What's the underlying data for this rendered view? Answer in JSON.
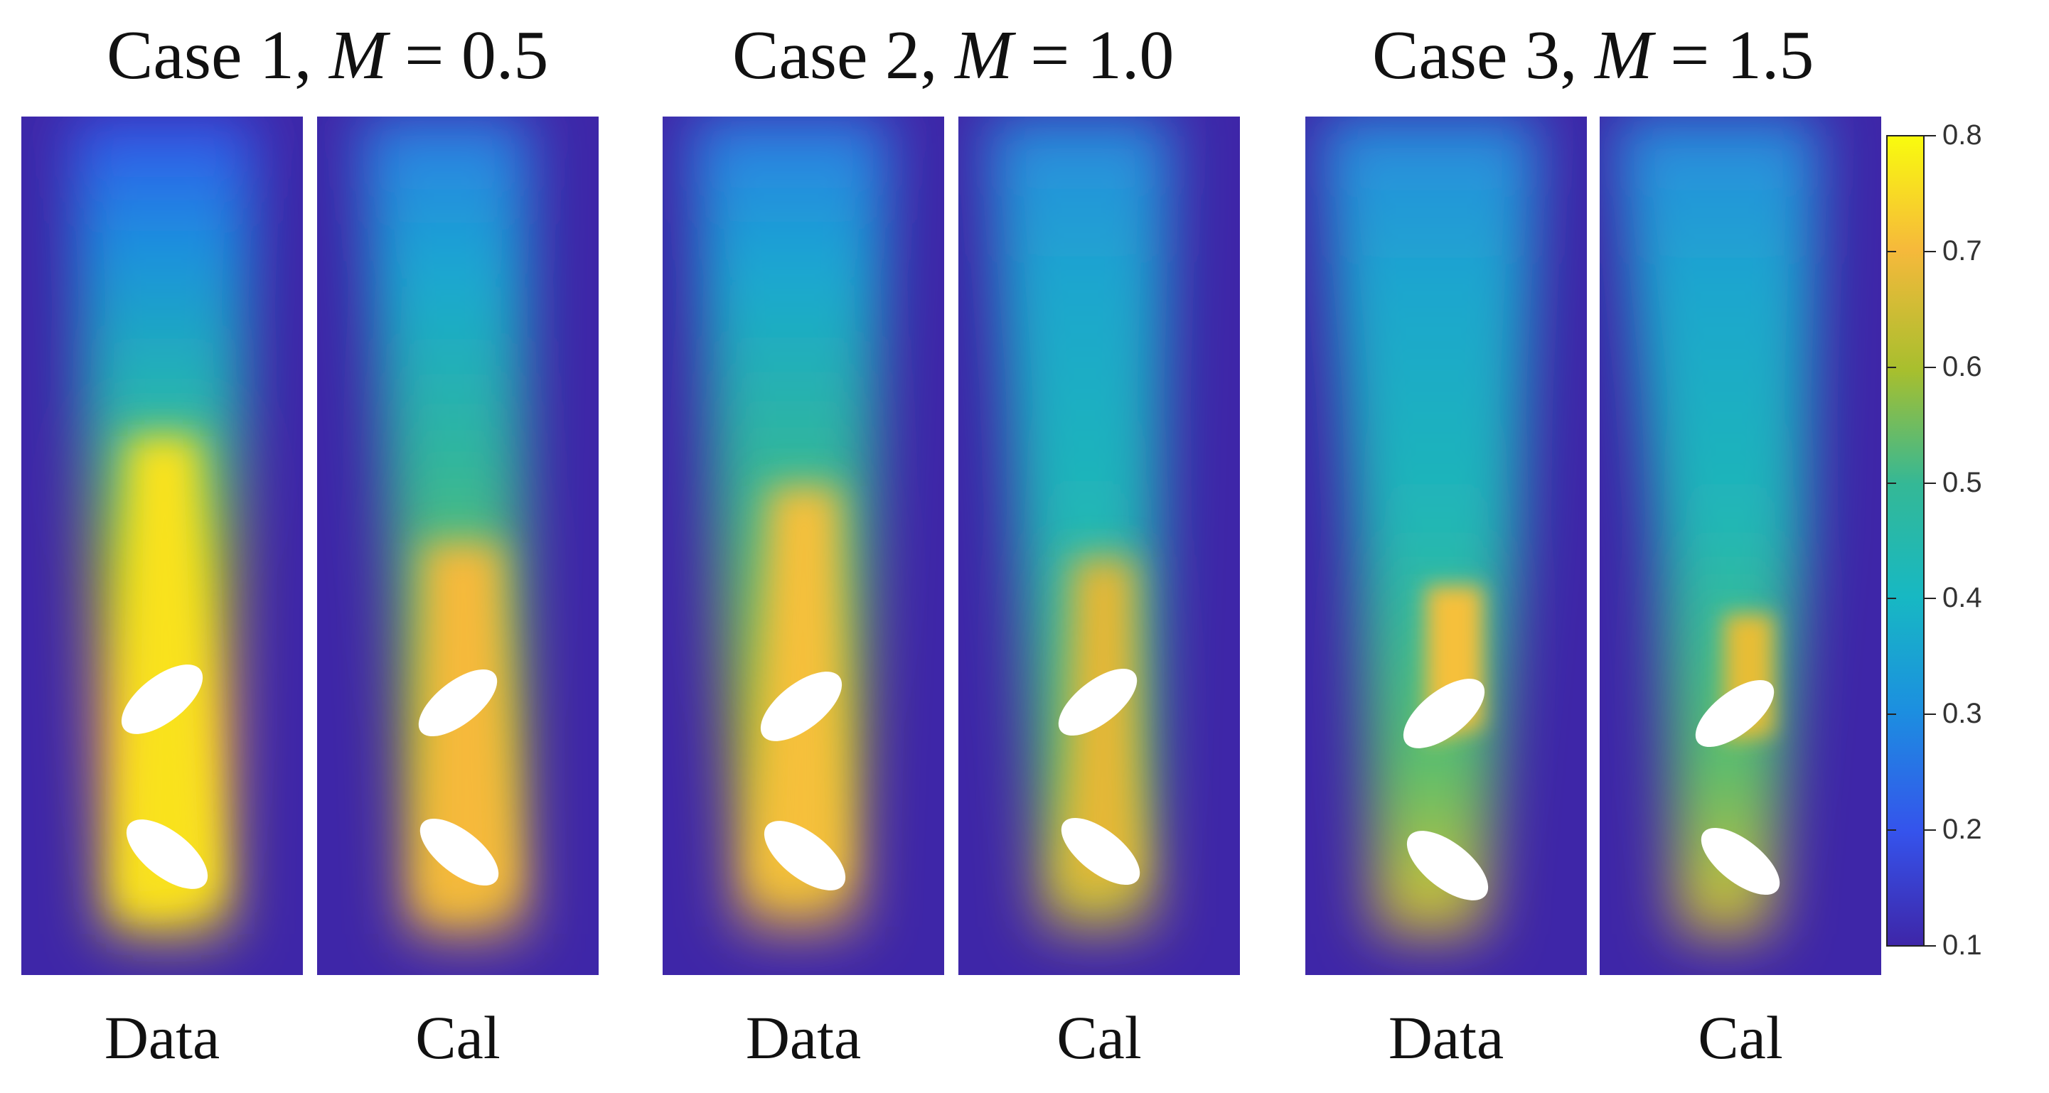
{
  "cases": [
    {
      "case": "Case 1, ",
      "var": "M",
      "rest": " = 0.5"
    },
    {
      "case": "Case 2, ",
      "var": "M",
      "rest": " = 1.0"
    },
    {
      "case": "Case 3, ",
      "var": "M",
      "rest": " = 1.5"
    }
  ],
  "panel_labels": [
    "Data",
    "Cal",
    "Data",
    "Cal",
    "Data",
    "Cal"
  ],
  "colorbar": {
    "ticks": [
      "0.8",
      "0.7",
      "0.6",
      "0.5",
      "0.4",
      "0.3",
      "0.2",
      "0.1"
    ],
    "colors": [
      "#f9fb0e",
      "#f6b93b",
      "#a7bf2e",
      "#34b896",
      "#17b8c3",
      "#1c8fe0",
      "#3553ec",
      "#3e26a8"
    ]
  },
  "background_color": "#3e26a8"
}
